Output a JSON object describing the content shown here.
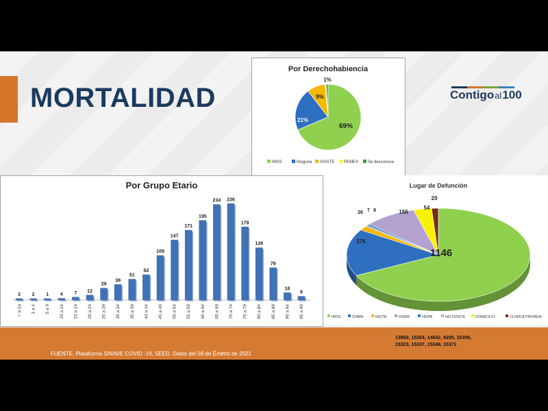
{
  "header": {
    "title": "MORTALIDAD",
    "logo": {
      "part1": "Contigo",
      "part2": "al",
      "part3": "100"
    }
  },
  "footer": {
    "source_prefix": "FUENTE. Plataforma SINAVE COVID -19, SEED. Datos del 09 de ",
    "source_big": "Enero",
    "source_suffix": " de 2021",
    "codes_line1": "13969, 15354, 14642, 9295, 15359,",
    "codes_line2": "15323, 15337, 15346, 15371"
  },
  "colors": {
    "accent_orange": "#d7752a",
    "brand_navy": "#1b3a5e",
    "bar_blue": "#3f72b8"
  },
  "chart_data": [
    {
      "type": "pie",
      "title": "Por Derechohabiencia",
      "labels": [
        "IMSS",
        "Ninguna",
        "ISSSTE",
        "PEMEX",
        "Se desconoce"
      ],
      "values": [
        69,
        21,
        9,
        0.5,
        1
      ],
      "data_labels": [
        "69%",
        "21%",
        "9%",
        "",
        "1%"
      ],
      "colors": [
        "#8fd14f",
        "#2f6fc0",
        "#f5b700",
        "#ffff00",
        "#2e9e4f"
      ],
      "legend": "bottom"
    },
    {
      "type": "bar",
      "title": "Por Grupo Etario",
      "categories": [
        "< a 1a",
        "1 a 4",
        "5 a 9",
        "10 a 14",
        "15 a 19",
        "20 a 24",
        "25 a 29",
        "30 a 34",
        "35 a 39",
        "40 a 44",
        "45 a 49",
        "50 a 54",
        "55 a 59",
        "60 a 64",
        "65 a 69",
        "70 a 74",
        "75 a 79",
        "80 a 84",
        "85 a 89",
        "90 a 94",
        "95 a 99"
      ],
      "values": [
        3,
        2,
        1,
        4,
        7,
        12,
        29,
        38,
        51,
        62,
        109,
        147,
        171,
        195,
        234,
        236,
        179,
        128,
        79,
        18,
        9
      ],
      "ylim": [
        0,
        250
      ],
      "grid": false,
      "color": "#3f72b8"
    },
    {
      "type": "pie",
      "title": "Lugar de Defunción",
      "labels": [
        "IMSS",
        "CHMH",
        "HGTM",
        "HGRR",
        "HGPA",
        "HG ISSSTE",
        "DOMICILIO",
        "CLINICA PRIVADA"
      ],
      "values": [
        1146,
        276,
        26,
        7,
        9,
        156,
        54,
        20
      ],
      "data_labels": [
        "1146",
        "276",
        "26",
        "7",
        "9",
        "156",
        "54",
        "20"
      ],
      "colors": [
        "#8fd14f",
        "#2f6fc0",
        "#f5b700",
        "#9aa3ad",
        "#2e7fc8",
        "#b3a2cf",
        "#f6f200",
        "#7a2c1a"
      ],
      "legend": "bottom"
    }
  ]
}
